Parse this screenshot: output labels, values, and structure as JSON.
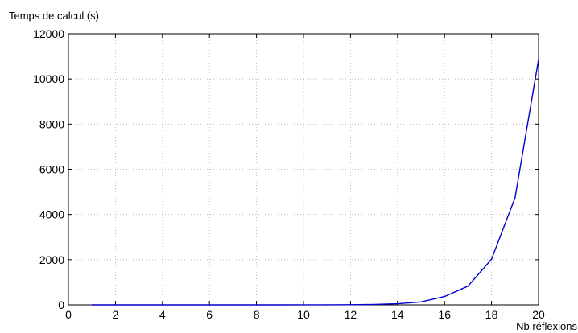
{
  "chart_data": {
    "type": "line",
    "title": "",
    "ylabel": "Temps de calcul (s)",
    "xlabel": "Nb réflexions",
    "xlim": [
      0,
      20
    ],
    "ylim": [
      0,
      12000
    ],
    "xticks": [
      0,
      2,
      4,
      6,
      8,
      10,
      12,
      14,
      16,
      18,
      20
    ],
    "yticks": [
      0,
      2000,
      4000,
      6000,
      8000,
      10000,
      12000
    ],
    "grid": true,
    "series": [
      {
        "color": "#0000cc",
        "x": [
          1,
          2,
          3,
          4,
          5,
          6,
          7,
          8,
          9,
          10,
          11,
          12,
          13,
          14,
          15,
          16,
          17,
          18,
          19,
          20
        ],
        "y": [
          0,
          0,
          0,
          0,
          0,
          0,
          0,
          0,
          0,
          1,
          3,
          7,
          20,
          50,
          130,
          370,
          830,
          2020,
          4740,
          10860
        ]
      }
    ]
  }
}
